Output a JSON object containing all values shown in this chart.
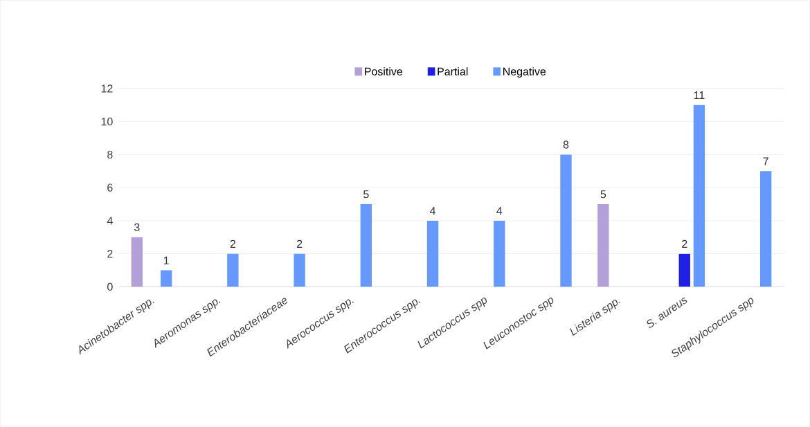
{
  "chart_data": {
    "type": "bar",
    "categories": [
      "Acinetobacter spp.",
      "Aeromonas spp.",
      "Enterobacteriaceae",
      "Aerococcus spp.",
      "Enterococcus spp.",
      "Lactococcus spp",
      "Leuconostoc spp",
      "Listeria spp.",
      "S. aureus",
      "Staphylococcus spp"
    ],
    "series": [
      {
        "name": "Positive",
        "color": "#b4a0d8",
        "values": [
          3,
          0,
          0,
          0,
          0,
          0,
          0,
          5,
          0,
          0
        ],
        "value_labels": [
          "3",
          null,
          null,
          null,
          null,
          null,
          null,
          "5",
          null,
          null
        ]
      },
      {
        "name": "Partial",
        "color": "#1f1fe6",
        "values": [
          0,
          0,
          0,
          0,
          0,
          0,
          0,
          0,
          2,
          0
        ],
        "value_labels": [
          null,
          null,
          null,
          null,
          null,
          null,
          null,
          null,
          "2",
          null
        ]
      },
      {
        "name": "Negative",
        "color": "#6699ff",
        "values": [
          1,
          2,
          2,
          5,
          4,
          4,
          8,
          0,
          11,
          7
        ],
        "value_labels": [
          "1",
          "2",
          "2",
          "5",
          "4",
          "4",
          "8",
          null,
          "11",
          "7"
        ]
      }
    ],
    "ylim": [
      0,
      12
    ],
    "yticks": [
      0,
      2,
      4,
      6,
      8,
      10,
      12
    ],
    "grid": "y",
    "legend": "top"
  }
}
